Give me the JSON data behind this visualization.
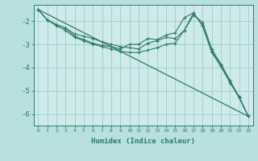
{
  "xlabel": "Humidex (Indice chaleur)",
  "bg_color": "#b8e0e0",
  "plot_bg_color": "#ceeaea",
  "grid_color": "#a0cccc",
  "line_color": "#2d7a6a",
  "xlim": [
    -0.5,
    23.5
  ],
  "ylim": [
    -6.5,
    -1.3
  ],
  "yticks": [
    -2,
    -3,
    -4,
    -5,
    -6
  ],
  "xticks": [
    0,
    1,
    2,
    3,
    4,
    5,
    6,
    7,
    8,
    9,
    10,
    11,
    12,
    13,
    14,
    15,
    16,
    17,
    18,
    19,
    20,
    21,
    22,
    23
  ],
  "series1_x": [
    0,
    1,
    2,
    3,
    4,
    5,
    6,
    7,
    8,
    9,
    10,
    11,
    12,
    13,
    14,
    15,
    16,
    17,
    18,
    19,
    20,
    21,
    22,
    23
  ],
  "series1_y": [
    -1.5,
    -1.95,
    -2.15,
    -2.3,
    -2.55,
    -2.65,
    -2.75,
    -2.9,
    -3.0,
    -3.1,
    -3.15,
    -3.2,
    -2.95,
    -2.85,
    -2.7,
    -2.75,
    -2.4,
    -1.75,
    -2.05,
    -3.2,
    -3.85,
    -4.55,
    -5.3,
    -6.1
  ],
  "series2_x": [
    0,
    1,
    2,
    3,
    4,
    5,
    6,
    7,
    8,
    9,
    10,
    11,
    12,
    13,
    14,
    15,
    16,
    17,
    18,
    19,
    20,
    21,
    22,
    23
  ],
  "series2_y": [
    -1.5,
    -1.95,
    -2.15,
    -2.3,
    -2.65,
    -2.8,
    -2.95,
    -3.05,
    -3.1,
    -3.2,
    -3.0,
    -3.0,
    -2.75,
    -2.8,
    -2.6,
    -2.5,
    -1.85,
    -1.65,
    -2.2,
    -3.3,
    -3.9,
    -4.6,
    -5.25,
    -6.1
  ],
  "series3_x": [
    0,
    1,
    2,
    3,
    4,
    5,
    6,
    7,
    8,
    9,
    10,
    11,
    12,
    13,
    14,
    15,
    16,
    17,
    18,
    19,
    20,
    21,
    22,
    23
  ],
  "series3_y": [
    -1.5,
    -1.95,
    -2.2,
    -2.4,
    -2.7,
    -2.85,
    -3.0,
    -3.1,
    -3.2,
    -3.3,
    -3.35,
    -3.35,
    -3.25,
    -3.15,
    -3.0,
    -2.95,
    -2.4,
    -1.65,
    -2.2,
    -3.35,
    -3.95,
    -4.65,
    -5.3,
    -6.1
  ],
  "series4_x": [
    0,
    23
  ],
  "series4_y": [
    -1.5,
    -6.1
  ]
}
